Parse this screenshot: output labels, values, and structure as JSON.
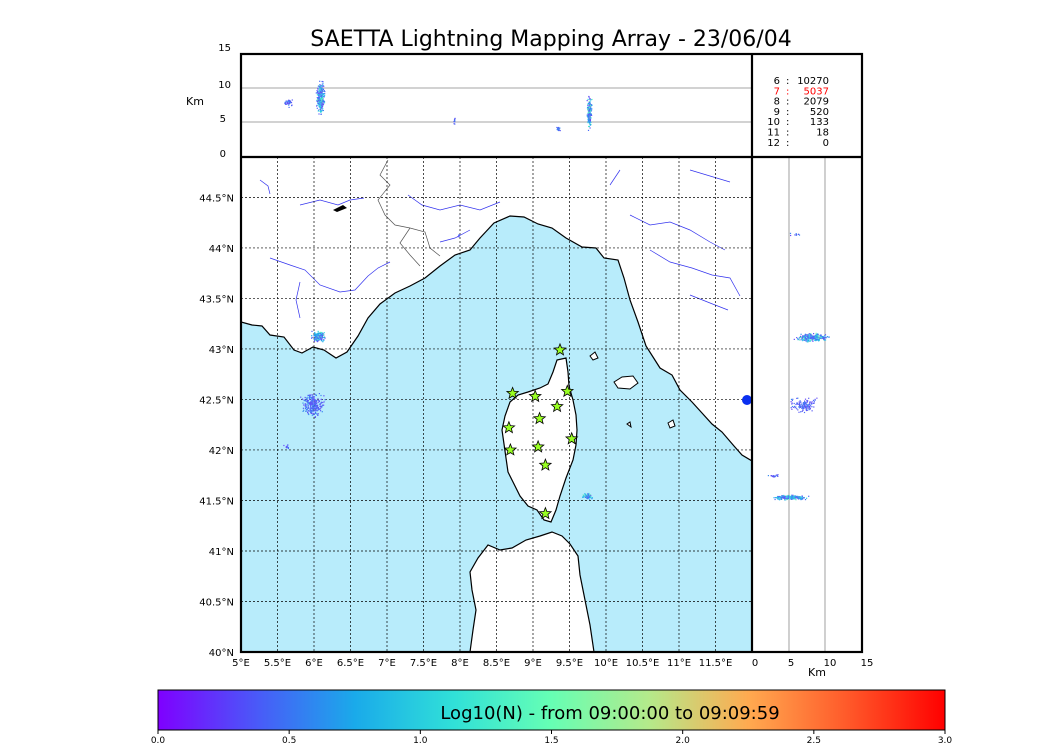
{
  "title": "SAETTA Lightning Mapping Array - 23/06/04",
  "top_panel": {
    "y_unit": "Km",
    "y_ticks": [
      "15",
      "10",
      "5",
      "0"
    ]
  },
  "side_panel": {
    "x_unit": "Km",
    "x_ticks": [
      "0",
      "5",
      "10",
      "15"
    ]
  },
  "stats": [
    {
      "label": "6",
      "value": "10270",
      "color": "#000000"
    },
    {
      "label": "7",
      "value": "5037",
      "color": "#ff0000"
    },
    {
      "label": "8",
      "value": "2079",
      "color": "#000000"
    },
    {
      "label": "9",
      "value": "520",
      "color": "#000000"
    },
    {
      "label": "10",
      "value": "133",
      "color": "#000000"
    },
    {
      "label": "11",
      "value": "18",
      "color": "#000000"
    },
    {
      "label": "12",
      "value": "0",
      "color": "#000000"
    }
  ],
  "map": {
    "lon_ticks": [
      "5°E",
      "5.5°E",
      "6°E",
      "6.5°E",
      "7°E",
      "7.5°E",
      "8°E",
      "8.5°E",
      "9°E",
      "9.5°E",
      "10°E",
      "10.5°E",
      "11°E",
      "11.5°E"
    ],
    "lat_ticks": [
      "44.5°N",
      "44°N",
      "43.5°N",
      "43°N",
      "42.5°N",
      "42°N",
      "41.5°N",
      "41°N",
      "40.5°N",
      "40°N"
    ],
    "sea_color": "#b8ecfb",
    "land_color": "#ffffff",
    "river_color": "#3333ee",
    "stations": [
      {
        "lon": 9.37,
        "lat": 42.99
      },
      {
        "lon": 8.72,
        "lat": 42.56
      },
      {
        "lon": 9.03,
        "lat": 42.53
      },
      {
        "lon": 9.47,
        "lat": 42.58
      },
      {
        "lon": 9.33,
        "lat": 42.43
      },
      {
        "lon": 9.09,
        "lat": 42.31
      },
      {
        "lon": 8.67,
        "lat": 42.22
      },
      {
        "lon": 9.53,
        "lat": 42.11
      },
      {
        "lon": 9.07,
        "lat": 42.03
      },
      {
        "lon": 8.69,
        "lat": 42.0
      },
      {
        "lon": 9.17,
        "lat": 41.85
      },
      {
        "lon": 9.17,
        "lat": 41.37
      }
    ]
  },
  "colorbar": {
    "label": "Log10(N) - from 09:00:00 to 09:09:59",
    "ticks": [
      "0.0",
      "0.5",
      "1.0",
      "1.5",
      "2.0",
      "2.5",
      "3.0"
    ],
    "gradient": [
      "#7f00ff",
      "#4a59f8",
      "#1aaaea",
      "#30e0d8",
      "#66ffb4",
      "#b5e98a",
      "#ffaa50",
      "#ff5a2a",
      "#ff0000"
    ]
  }
}
